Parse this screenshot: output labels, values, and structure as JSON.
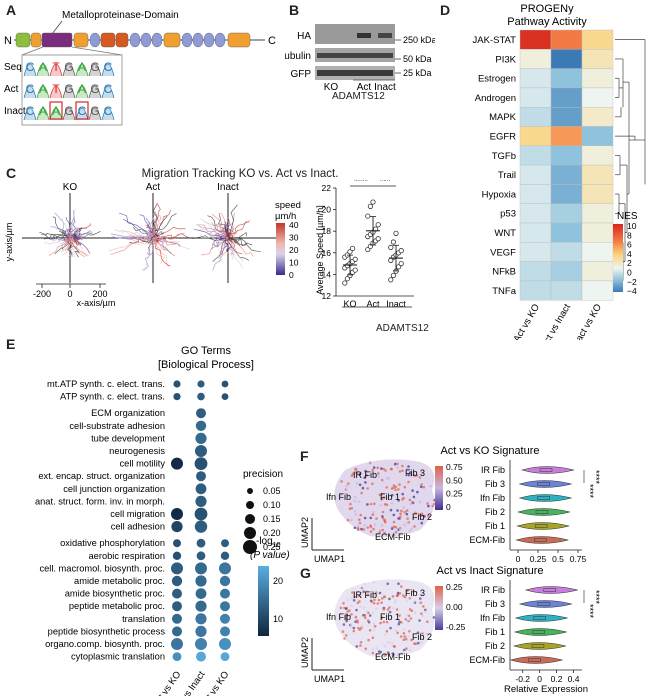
{
  "panels": {
    "A": {
      "letter": "A",
      "domain_label": "Metalloproteinase-Domain",
      "n_label": "N",
      "c_label": "C",
      "rows": [
        {
          "label": "Seq",
          "bases": [
            "C",
            "A",
            "T",
            "G",
            "A",
            "G",
            "C"
          ]
        },
        {
          "label": "Act",
          "bases": [
            "C",
            "A",
            "T",
            "G",
            "A",
            "G",
            "C"
          ]
        },
        {
          "label": "Inact",
          "bases": [
            "C",
            "A",
            "A",
            "G",
            "C",
            "G",
            "C"
          ]
        }
      ],
      "colors": {
        "A": "#2ca02c",
        "C": "#1f77b4",
        "G": "#555555",
        "T": "#d62728"
      }
    },
    "B": {
      "letter": "B",
      "rows": [
        {
          "label": "HA",
          "kda": "250 kDa"
        },
        {
          "label": "Tubulin",
          "kda": "50 kDa"
        },
        {
          "label": "GFP",
          "kda": "25 kDa"
        }
      ],
      "lanes": [
        "KO",
        "Act",
        "Inact"
      ],
      "group": "ADAMTS12"
    },
    "C": {
      "letter": "C",
      "title": "Migration Tracking KO vs. Act vs Inact.",
      "plots": [
        "KO",
        "Act",
        "Inact"
      ],
      "y_axis": "y-axis/µm",
      "x_axis": "x-axis/µm",
      "x_ticks": [
        "-200",
        "0",
        "200"
      ],
      "legend_title": "speed",
      "legend_unit": "µm/h",
      "legend_ticks": [
        "40",
        "30",
        "20",
        "10",
        "0"
      ],
      "speed_ylabel": "Average Speed [µm/h]",
      "speed_yticks": [
        "12",
        "14",
        "16",
        "18",
        "20",
        "22"
      ],
      "speed_categories": [
        "KO",
        "Act",
        "Inact"
      ],
      "speed_group": "ADAMTS12",
      "sig": [
        "****",
        "***"
      ]
    },
    "D": {
      "letter": "D",
      "title_line1": "PROGENy",
      "title_line2": "Pathway Activity",
      "columns": [
        "Act vs KO",
        "Act vs Inact",
        "Inact vs KO"
      ],
      "legend_title": "NES",
      "legend_ticks": [
        "10",
        "8",
        "6",
        "4",
        "2",
        "0",
        "−2",
        "−4"
      ]
    },
    "E": {
      "letter": "E",
      "title_line1": "GO Terms",
      "title_line2": "[Biological Process]",
      "columns": [
        "Act vs KO",
        "Act vs Inact",
        "Inact vs KO"
      ],
      "size_legend_title": "precision",
      "size_legend": [
        "0.05",
        "0.10",
        "0.15",
        "0.20",
        "0.25"
      ],
      "color_legend_title_1": "-log",
      "color_legend_title_sub": "10",
      "color_legend_title_2": "(P value)",
      "color_legend_ticks": [
        "20",
        "10"
      ]
    },
    "F": {
      "letter": "F",
      "title": "Act vs KO Signature",
      "umap_labels": [
        "IR Fib",
        "Fib 3",
        "Ifn Fib",
        "Fib 1",
        "Fib 2",
        "ECM-Fib"
      ],
      "cbar_ticks": [
        "0.75",
        "0.50",
        "0.25",
        "0"
      ],
      "umap1": "UMAP1",
      "umap2": "UMAP2",
      "violin_labels": [
        "IR Fib",
        "Fib 3",
        "Ifn Fib",
        "Fib 2",
        "Fib 1",
        "ECM-Fib"
      ],
      "x_ticks": [
        "0",
        "0.25",
        "0.5",
        "0.75"
      ],
      "xlabel": "Relative Expression",
      "sig": "****"
    },
    "G": {
      "letter": "G",
      "title": "Act vs Inact Signature",
      "umap_labels": [
        "IR Fib",
        "Fib 3",
        "Ifn Fib",
        "Fib 1",
        "Fib 2",
        "ECM-Fib"
      ],
      "cbar_ticks": [
        "0.25",
        "0.00",
        "-0.25"
      ],
      "umap1": "UMAP1",
      "umap2": "UMAP2",
      "violin_labels": [
        "IR Fib",
        "Fib 3",
        "Ifn Fib",
        "Fib 1",
        "Fib 2",
        "ECM-Fib"
      ],
      "x_ticks": [
        "-0.2",
        "0",
        "0.2",
        "0.4"
      ],
      "xlabel": "Relative Expression",
      "sig": "****"
    }
  },
  "chart_data": [
    {
      "type": "scatter",
      "ylabel": "Average Speed [µm/h]",
      "ylim": [
        12,
        22
      ],
      "categories": [
        "KO",
        "Act",
        "Inact"
      ],
      "series": [
        {
          "name": "KO",
          "values": [
            13.2,
            13.6,
            13.9,
            14.2,
            14.4,
            14.6,
            14.8,
            15.0,
            15.2,
            15.4,
            15.6,
            15.8,
            16.1,
            16.4
          ]
        },
        {
          "name": "Act",
          "values": [
            16.3,
            16.6,
            16.9,
            17.1,
            17.3,
            17.5,
            17.7,
            17.9,
            18.2,
            18.6,
            19.4,
            20.3,
            20.7
          ]
        },
        {
          "name": "Inact",
          "values": [
            13.5,
            13.9,
            14.3,
            14.7,
            15.0,
            15.3,
            15.6,
            15.8,
            16.0,
            16.2,
            16.5,
            17.0,
            17.8
          ]
        }
      ]
    },
    {
      "type": "heatmap",
      "title": "PROGENy Pathway Activity",
      "columns": [
        "Act vs KO",
        "Act vs Inact",
        "Inact vs KO"
      ],
      "rows": [
        "JAK-STAT",
        "PI3K",
        "Estrogen",
        "Androgen",
        "MAPK",
        "EGFR",
        "TGFb",
        "Trail",
        "Hypoxia",
        "p53",
        "WNT",
        "VEGF",
        "NFkB",
        "TNFa"
      ],
      "values": [
        [
          9.5,
          6.0,
          2.5
        ],
        [
          0.5,
          -4.0,
          1.5
        ],
        [
          -0.5,
          -2.0,
          0.5
        ],
        [
          -0.5,
          -3.0,
          0.0
        ],
        [
          -1.0,
          -3.0,
          1.0
        ],
        [
          2.5,
          5.0,
          -2.0
        ],
        [
          -1.0,
          -2.0,
          0.5
        ],
        [
          -0.5,
          -2.5,
          1.5
        ],
        [
          -0.5,
          -2.5,
          1.5
        ],
        [
          -0.5,
          -1.5,
          0.5
        ],
        [
          -0.5,
          -2.0,
          0.5
        ],
        [
          -0.5,
          -1.0,
          0.0
        ],
        [
          -1.0,
          -1.5,
          0.5
        ],
        [
          -1.0,
          -1.0,
          0.0
        ]
      ],
      "legend_range": [
        -4,
        10
      ]
    },
    {
      "type": "scatter",
      "title": "GO Terms [Biological Process]",
      "columns": [
        "Act vs KO",
        "Act vs Inact",
        "Inact vs KO"
      ],
      "rows": [
        "mt.ATP synth. c. elect. trans.",
        "ATP synth. c. elect. trans.",
        "ECM organization",
        "cell-substrate adhesion",
        "tube development",
        "neurogenesis",
        "cell motility",
        "ext. encap. struct. organization",
        "cell junction organization",
        "anat. struct. form. inv. in morph.",
        "cell migration",
        "cell adhesion",
        "oxidative phosphorylation",
        "aerobic respiration",
        "cell. macromol. biosynth. proc.",
        "amide metabolic proc.",
        "amide biosynthetic proc.",
        "peptide metabolic proc.",
        "translation",
        "peptide biosynthetic process",
        "organo.comp. biosynth. proc.",
        "cytoplasmic translation"
      ],
      "precision": [
        [
          0.08,
          0.08,
          0.07
        ],
        [
          0.08,
          0.09,
          0.07
        ],
        [
          null,
          0.15,
          null
        ],
        [
          null,
          0.16,
          null
        ],
        [
          null,
          0.18,
          null
        ],
        [
          null,
          0.2,
          null
        ],
        [
          0.2,
          0.22,
          null
        ],
        [
          null,
          0.15,
          null
        ],
        [
          null,
          0.17,
          null
        ],
        [
          null,
          0.18,
          null
        ],
        [
          0.2,
          0.22,
          null
        ],
        [
          0.18,
          0.21,
          null
        ],
        [
          0.1,
          0.12,
          0.1
        ],
        [
          0.11,
          0.12,
          0.11
        ],
        [
          0.2,
          0.2,
          0.2
        ],
        [
          0.16,
          0.18,
          0.16
        ],
        [
          0.15,
          0.17,
          0.15
        ],
        [
          0.15,
          0.18,
          0.15
        ],
        [
          0.15,
          0.18,
          0.15
        ],
        [
          0.15,
          0.18,
          0.15
        ],
        [
          0.2,
          0.2,
          0.2
        ],
        [
          0.12,
          0.15,
          0.12
        ]
      ],
      "neglog10p": [
        [
          12,
          14,
          12
        ],
        [
          12,
          14,
          12
        ],
        [
          null,
          14,
          null
        ],
        [
          null,
          16,
          null
        ],
        [
          null,
          16,
          null
        ],
        [
          null,
          14,
          null
        ],
        [
          6,
          12,
          null
        ],
        [
          null,
          14,
          null
        ],
        [
          null,
          14,
          null
        ],
        [
          null,
          14,
          null
        ],
        [
          6,
          12,
          null
        ],
        [
          10,
          14,
          null
        ],
        [
          12,
          14,
          14
        ],
        [
          12,
          14,
          14
        ],
        [
          14,
          16,
          18
        ],
        [
          14,
          16,
          18
        ],
        [
          14,
          16,
          18
        ],
        [
          14,
          16,
          18
        ],
        [
          16,
          18,
          20
        ],
        [
          16,
          18,
          20
        ],
        [
          18,
          20,
          22
        ],
        [
          22,
          26,
          26
        ]
      ]
    },
    {
      "type": "violin",
      "title": "Act vs KO Signature",
      "xlabel": "Relative Expression",
      "xlim": [
        -0.1,
        0.8
      ],
      "categories": [
        "IR Fib",
        "Fib 3",
        "Ifn Fib",
        "Fib 2",
        "Fib 1",
        "ECM-Fib"
      ],
      "medians": [
        0.35,
        0.32,
        0.32,
        0.3,
        0.29,
        0.28
      ],
      "colors": [
        "#c77ddb",
        "#6b83d9",
        "#2bb3c3",
        "#48b35a",
        "#a9a427",
        "#cc6a57"
      ]
    },
    {
      "type": "violin",
      "title": "Act vs Inact Signature",
      "xlabel": "Relative Expression",
      "xlim": [
        -0.35,
        0.5
      ],
      "categories": [
        "IR Fib",
        "Fib 3",
        "Ifn Fib",
        "Fib 1",
        "Fib 2",
        "ECM-Fib"
      ],
      "medians": [
        0.12,
        0.05,
        0.0,
        -0.01,
        -0.02,
        -0.06
      ],
      "colors": [
        "#c77ddb",
        "#6b83d9",
        "#2bb3c3",
        "#48b35a",
        "#a9a427",
        "#cc6a57"
      ]
    }
  ]
}
